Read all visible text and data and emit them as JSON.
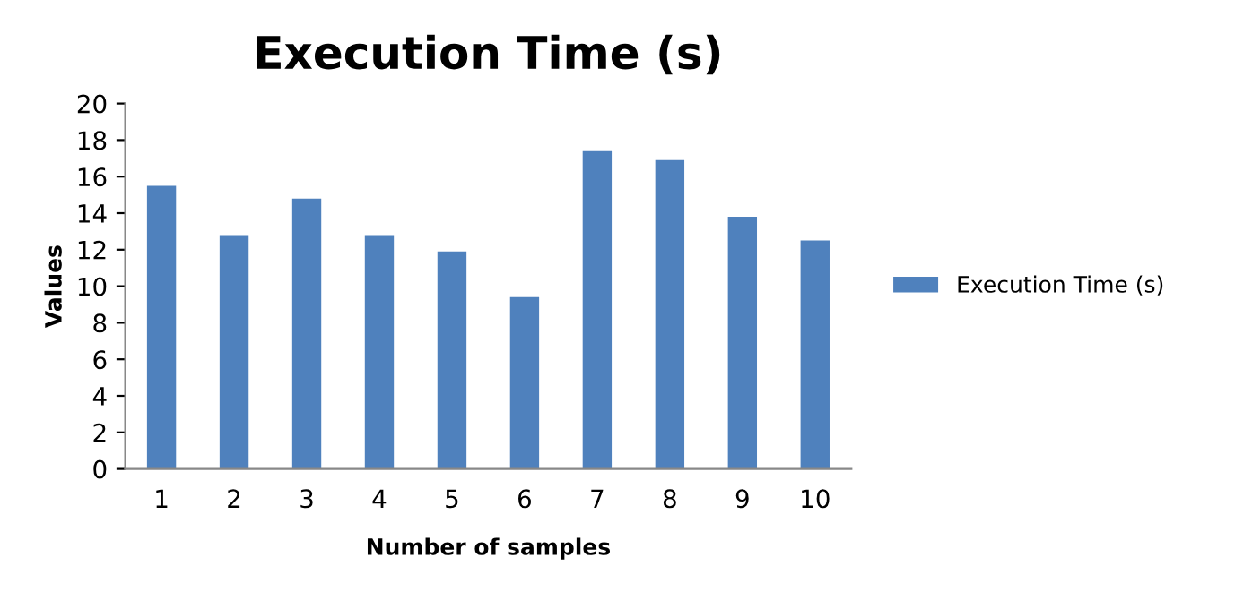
{
  "chart_data": {
    "type": "bar",
    "title": "Execution Time (s)",
    "xlabel": "Number of samples",
    "ylabel": "Values",
    "categories": [
      "1",
      "2",
      "3",
      "4",
      "5",
      "6",
      "7",
      "8",
      "9",
      "10"
    ],
    "series": [
      {
        "name": "Execution Time (s)",
        "color": "#4f81bd",
        "values": [
          15.5,
          12.8,
          14.8,
          12.8,
          11.9,
          9.4,
          17.4,
          16.9,
          13.8,
          12.5
        ]
      }
    ],
    "ylim": [
      0,
      20
    ],
    "yticks": [
      0,
      2,
      4,
      6,
      8,
      10,
      12,
      14,
      16,
      18,
      20
    ],
    "grid": false,
    "legend": "right"
  }
}
